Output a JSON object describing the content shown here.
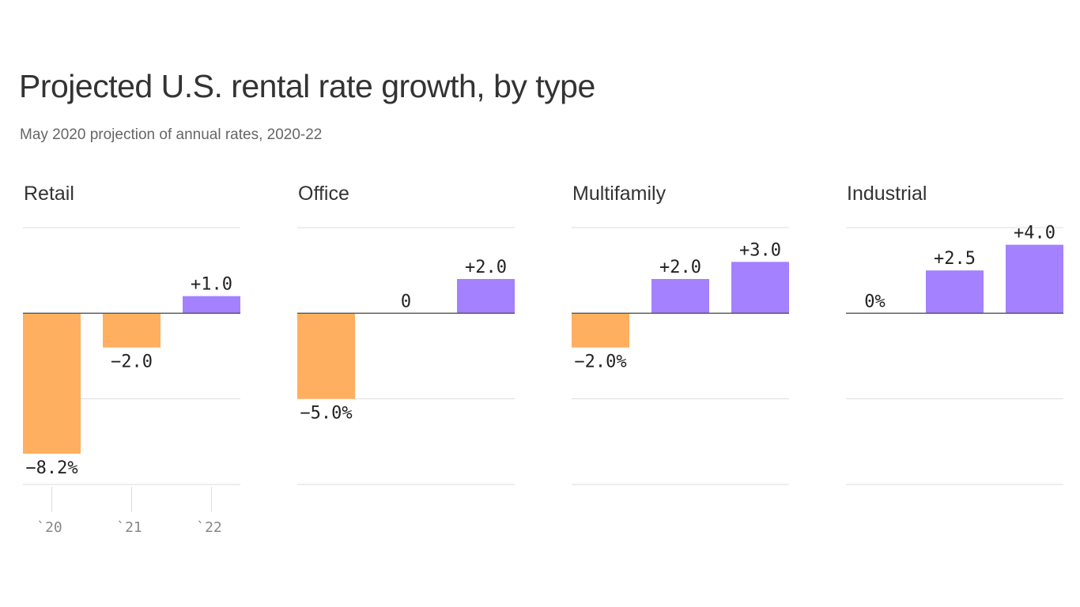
{
  "colors": {
    "negative": "#FFAF5F",
    "positive": "#A381FF",
    "grid": "#dddddd",
    "baseline": "#555555"
  },
  "chart_data": {
    "type": "bar",
    "title": "Projected U.S. rental rate growth, by type",
    "subtitle": "May 2020 projection of annual rates, 2020-22",
    "categories": [
      "`20",
      "`21",
      "`22"
    ],
    "ylim": [
      -10,
      5
    ],
    "grid": true,
    "panels": [
      {
        "name": "Retail",
        "values": [
          -8.2,
          -2.0,
          1.0
        ],
        "labels": [
          "−8.2%",
          "−2.0",
          "+1.0"
        ],
        "show_ticks": true
      },
      {
        "name": "Office",
        "values": [
          -5.0,
          0,
          2.0
        ],
        "labels": [
          "−5.0%",
          "0",
          "+2.0"
        ],
        "show_ticks": false
      },
      {
        "name": "Multifamily",
        "values": [
          -2.0,
          2.0,
          3.0
        ],
        "labels": [
          "−2.0%",
          "+2.0",
          "+3.0"
        ],
        "show_ticks": false
      },
      {
        "name": "Industrial",
        "values": [
          0,
          2.5,
          4.0
        ],
        "labels": [
          "0%",
          "+2.5",
          "+4.0"
        ],
        "show_ticks": false
      }
    ]
  }
}
